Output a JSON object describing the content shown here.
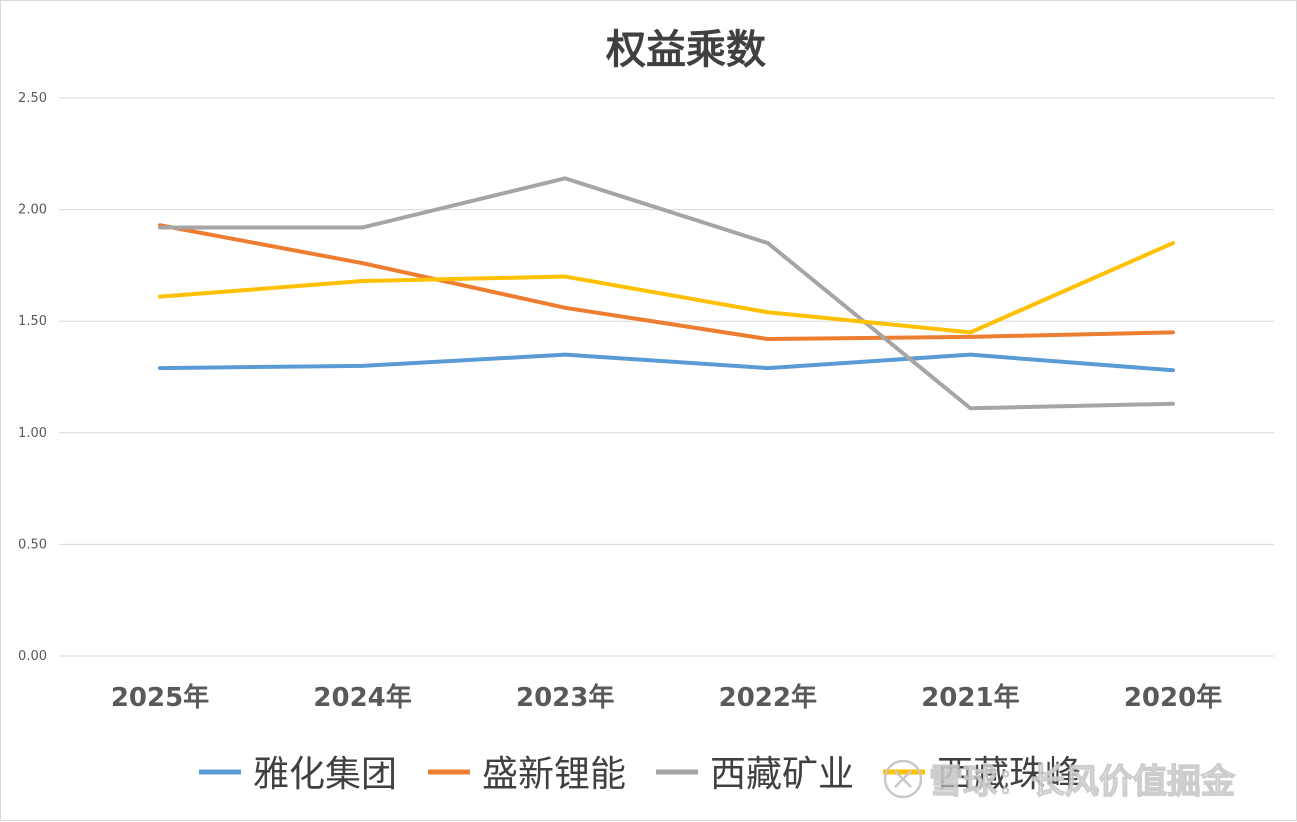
{
  "chart_data": {
    "type": "line",
    "title": "权益乘数",
    "categories": [
      "2025年",
      "2024年",
      "2023年",
      "2022年",
      "2021年",
      "2020年"
    ],
    "ylim": [
      0,
      2.5
    ],
    "yticks": [
      "0.00",
      "0.50",
      "1.00",
      "1.50",
      "2.00",
      "2.50"
    ],
    "grid": true,
    "legend_position": "bottom",
    "series": [
      {
        "name": "雅化集团",
        "color": "#5b9bd5",
        "values": [
          1.29,
          1.3,
          1.35,
          1.29,
          1.35,
          1.28
        ]
      },
      {
        "name": "盛新锂能",
        "color": "#ed7d31",
        "values": [
          1.93,
          1.76,
          1.56,
          1.42,
          1.43,
          1.45
        ]
      },
      {
        "name": "西藏矿业",
        "color": "#a5a5a5",
        "values": [
          1.92,
          1.92,
          2.14,
          1.85,
          1.11,
          1.13
        ]
      },
      {
        "name": "西藏珠峰",
        "color": "#ffc000",
        "values": [
          1.61,
          1.68,
          1.7,
          1.54,
          1.45,
          1.85
        ]
      }
    ]
  },
  "watermark": {
    "text": "雪球：长风价值掘金",
    "icon": "snowball-logo-icon"
  }
}
